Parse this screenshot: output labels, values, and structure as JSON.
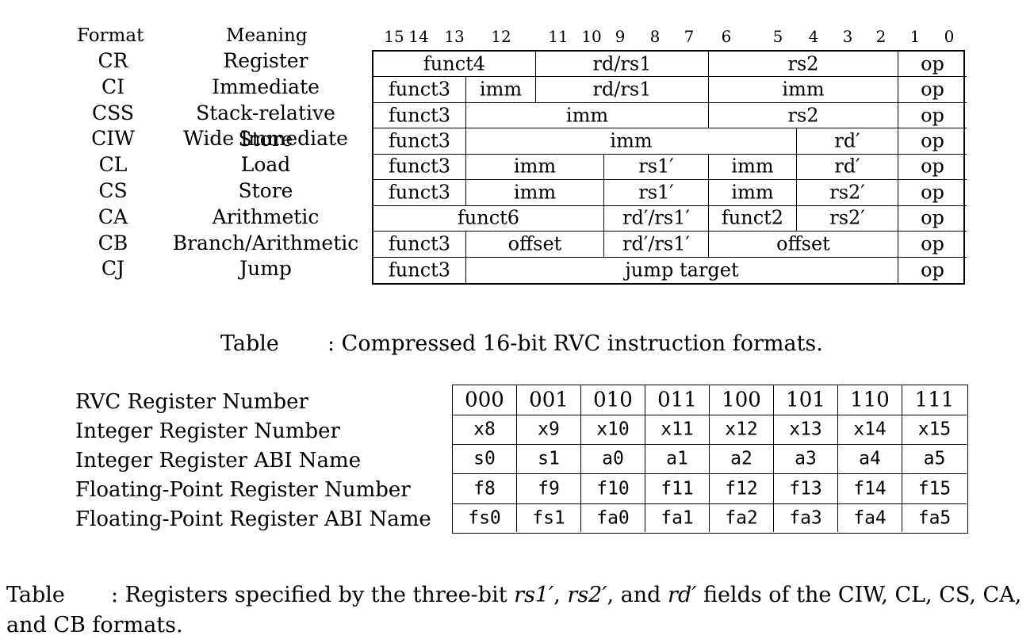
{
  "formats_table": {
    "headers": {
      "format": "Format",
      "meaning": "Meaning"
    },
    "bit_numbers": [
      "15",
      "14",
      "13",
      "12",
      "11",
      "10",
      "9",
      "8",
      "7",
      "6",
      "5",
      "4",
      "3",
      "2",
      "1",
      "0"
    ],
    "rows": [
      {
        "format": "CR",
        "meaning": "Register"
      },
      {
        "format": "CI",
        "meaning": "Immediate"
      },
      {
        "format": "CSS",
        "meaning": "Stack-relative Store"
      },
      {
        "format": "CIW",
        "meaning": "Wide Immediate"
      },
      {
        "format": "CL",
        "meaning": "Load"
      },
      {
        "format": "CS",
        "meaning": "Store"
      },
      {
        "format": "CA",
        "meaning": "Arithmetic"
      },
      {
        "format": "CB",
        "meaning": "Branch/Arithmetic"
      },
      {
        "format": "CJ",
        "meaning": "Jump"
      }
    ],
    "fields": {
      "CR": [
        "funct4",
        "rd/rs1",
        "rs2",
        "op"
      ],
      "CI": [
        "funct3",
        "imm",
        "rd/rs1",
        "imm",
        "op"
      ],
      "CSS": [
        "funct3",
        "imm",
        "rs2",
        "op"
      ],
      "CIW": [
        "funct3",
        "imm",
        "rd′",
        "op"
      ],
      "CL": [
        "funct3",
        "imm",
        "rs1′",
        "imm",
        "rd′",
        "op"
      ],
      "CS": [
        "funct3",
        "imm",
        "rs1′",
        "imm",
        "rs2′",
        "op"
      ],
      "CA": [
        "funct6",
        "rd′/rs1′",
        "funct2",
        "rs2′",
        "op"
      ],
      "CB": [
        "funct3",
        "offset",
        "rd′/rs1′",
        "offset",
        "op"
      ],
      "CJ": [
        "funct3",
        "jump target",
        "op"
      ]
    }
  },
  "caption1": {
    "label": "Table",
    "text": ": Compressed 16-bit RVC instruction formats."
  },
  "registers_table": {
    "row_labels": [
      "RVC Register Number",
      "Integer Register Number",
      "Integer Register ABI Name",
      "Floating-Point Register Number",
      "Floating-Point Register ABI Name"
    ],
    "rows": [
      [
        "000",
        "001",
        "010",
        "011",
        "100",
        "101",
        "110",
        "111"
      ],
      [
        "x8",
        "x9",
        "x10",
        "x11",
        "x12",
        "x13",
        "x14",
        "x15"
      ],
      [
        "s0",
        "s1",
        "a0",
        "a1",
        "a2",
        "a3",
        "a4",
        "a5"
      ],
      [
        "f8",
        "f9",
        "f10",
        "f11",
        "f12",
        "f13",
        "f14",
        "f15"
      ],
      [
        "fs0",
        "fs1",
        "fa0",
        "fa1",
        "fa2",
        "fa3",
        "fa4",
        "fa5"
      ]
    ]
  },
  "caption2": {
    "label": "Table",
    "prefix": ": Registers specified by the three-bit ",
    "rs1": "rs1′",
    "sep1": ", ",
    "rs2": "rs2′",
    "sep2": ", and ",
    "rd": "rd′",
    "suffix": " fields of the CIW, CL, CS, CA,",
    "line2": "and CB formats."
  }
}
